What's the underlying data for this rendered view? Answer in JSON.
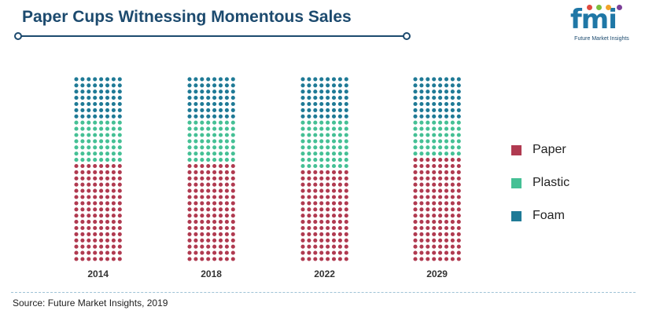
{
  "title": "Paper Cups Witnessing Momentous Sales",
  "logo": {
    "mark": "fmi",
    "tagline": "Future Market Insights"
  },
  "source": "Source: Future Market Insights, 2019",
  "colors": {
    "paper": "#b03a50",
    "plastic": "#45c095",
    "foam": "#1f7a96",
    "title": "#1c4a6e"
  },
  "chart_data": {
    "type": "bar",
    "subtype": "stacked-dot-matrix",
    "title": "Paper Cups Witnessing Momentous Sales",
    "xlabel": "",
    "ylabel": "",
    "ylim": [
      0,
      100
    ],
    "units": "percent share",
    "categories": [
      "2014",
      "2018",
      "2022",
      "2029"
    ],
    "series": [
      {
        "name": "Paper",
        "color": "#b03a50",
        "values": [
          52,
          54,
          50,
          55
        ]
      },
      {
        "name": "Plastic",
        "color": "#45c095",
        "values": [
          25,
          23,
          25,
          20
        ]
      },
      {
        "name": "Foam",
        "color": "#1f7a96",
        "values": [
          23,
          23,
          25,
          25
        ]
      }
    ],
    "legend": [
      "Paper",
      "Plastic",
      "Foam"
    ],
    "legend_position": "right"
  }
}
